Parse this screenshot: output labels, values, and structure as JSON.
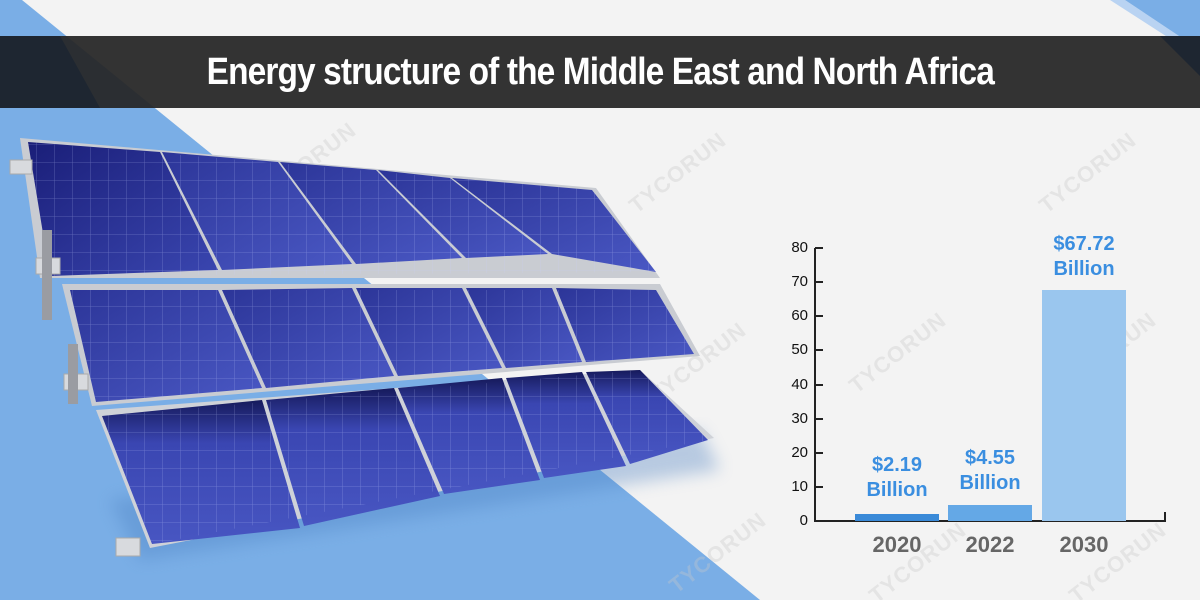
{
  "header": {
    "title": "Energy structure of the Middle East and North Africa"
  },
  "watermark": "TYCORUN",
  "colors": {
    "background": "#f3f3f3",
    "accent_blue": "#7aaee6",
    "title_bar": "#262626",
    "bar_2020": "#3a8ad8",
    "bar_2022": "#64a8e6",
    "bar_2030": "#9ac6ee",
    "label_blue": "#3a8ee0",
    "category_gray": "#666666"
  },
  "chart_data": {
    "type": "bar",
    "title": "",
    "xlabel": "",
    "ylabel": "",
    "categories": [
      "2020",
      "2022",
      "2030"
    ],
    "values": [
      2.19,
      4.55,
      67.72
    ],
    "value_labels": [
      {
        "amount": "$2.19",
        "unit": "Billion"
      },
      {
        "amount": "$4.55",
        "unit": "Billion"
      },
      {
        "amount": "$67.72",
        "unit": "Billion"
      }
    ],
    "yticks": [
      0,
      10,
      20,
      30,
      40,
      50,
      60,
      70,
      80
    ],
    "ylim": [
      0,
      80
    ],
    "grid": false,
    "legend": null
  }
}
